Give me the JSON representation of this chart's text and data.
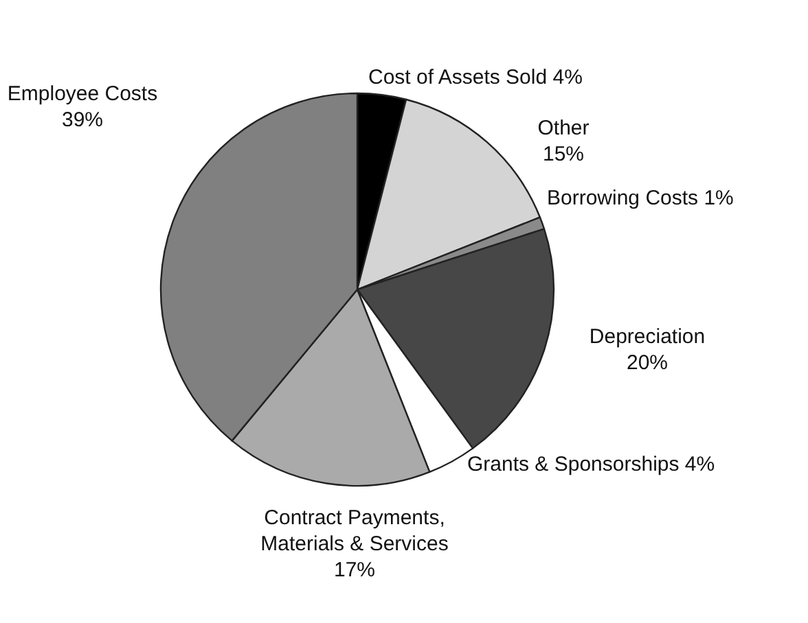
{
  "chart_data": {
    "type": "pie",
    "categories": [
      "Cost of Assets Sold",
      "Other",
      "Borrowing Costs",
      "Depreciation",
      "Grants & Sponsorships",
      "Contract Payments, Materials & Services",
      "Employee Costs"
    ],
    "values": [
      4,
      15,
      1,
      20,
      4,
      17,
      39
    ],
    "value_labels": [
      "4%",
      "15%",
      "1%",
      "20%",
      "4%",
      "17%",
      "39%"
    ],
    "colors": [
      "#000000",
      "#d4d4d4",
      "#8a8a8a",
      "#474747",
      "#ffffff",
      "#aaaaaa",
      "#808080"
    ]
  }
}
